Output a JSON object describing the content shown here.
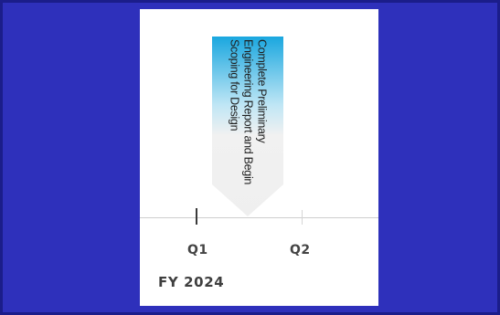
{
  "timeline": {
    "milestone": {
      "label": "Complete Preliminary Engineering Report and Begin Scoping for Design",
      "gradient_top": "#1aa7df",
      "gradient_bottom": "#f2f2f2"
    },
    "quarters": [
      {
        "label": "Q1",
        "active": true
      },
      {
        "label": "Q2",
        "active": false
      }
    ],
    "fiscal_year": "FY 2024"
  },
  "colors": {
    "background": "#2e30bb",
    "panel": "#ffffff",
    "axis": "#cfcfcf",
    "tick_active": "#3a3a3a"
  }
}
